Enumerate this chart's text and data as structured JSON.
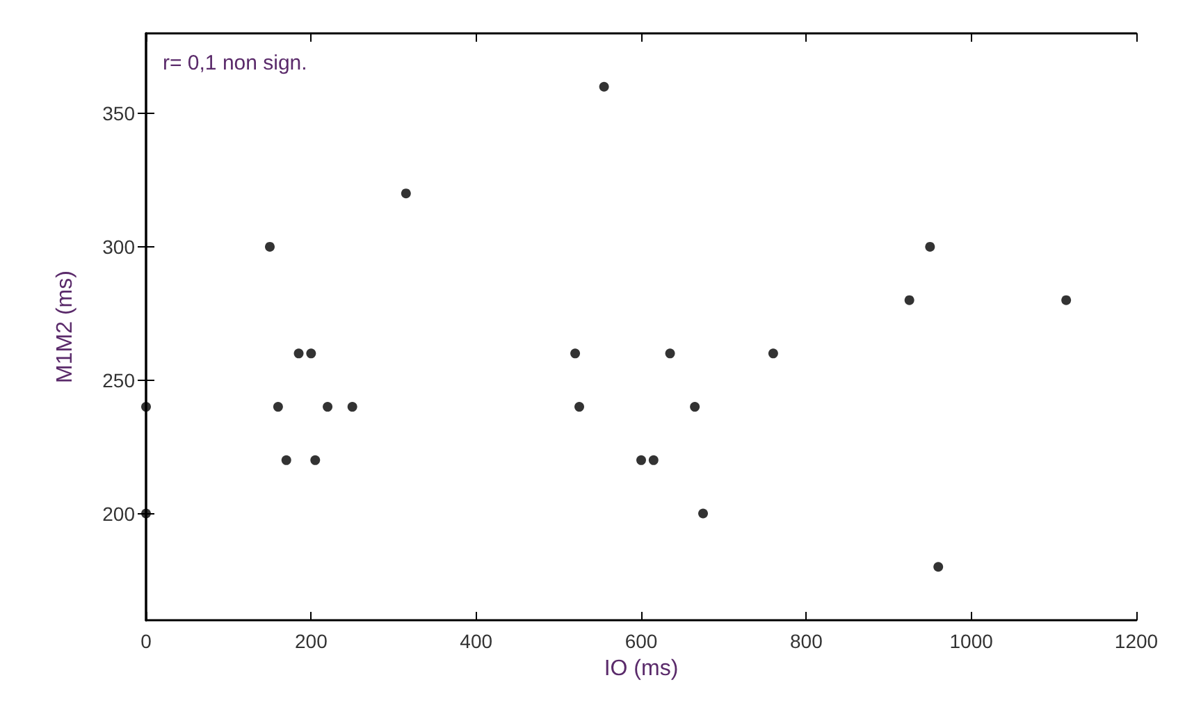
{
  "chart_data": {
    "type": "scatter",
    "xlabel": "IO (ms)",
    "ylabel": "M1M2 (ms)",
    "annotations": [
      "r= 0,1 non sign."
    ],
    "x": [
      0,
      0,
      150,
      160,
      170,
      185,
      200,
      205,
      220,
      250,
      315,
      520,
      525,
      555,
      600,
      615,
      635,
      665,
      675,
      760,
      925,
      950,
      960,
      1115
    ],
    "values": [
      240,
      200,
      300,
      240,
      220,
      260,
      260,
      220,
      240,
      240,
      320,
      260,
      240,
      360,
      220,
      220,
      260,
      240,
      200,
      260,
      280,
      300,
      180,
      280
    ],
    "color": "#000000",
    "marker": "circle",
    "xlim": [
      0,
      1200
    ],
    "xticks": [
      0,
      200,
      400,
      600,
      800,
      1000,
      1200
    ],
    "ylim": [
      160,
      380
    ],
    "yticks": [
      200,
      250,
      300,
      350
    ],
    "grid": false
  }
}
